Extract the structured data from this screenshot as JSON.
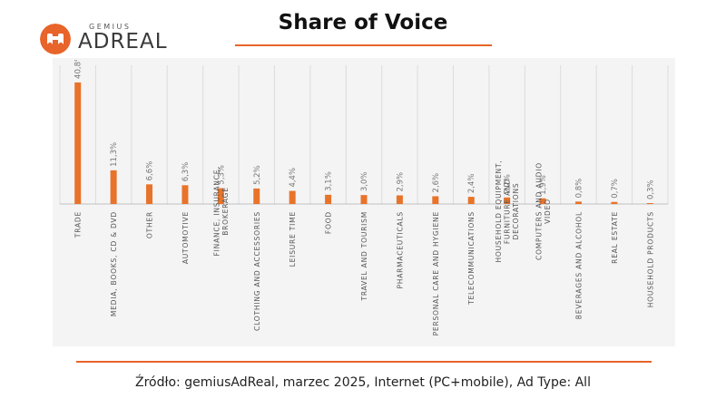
{
  "brand": {
    "small": "GEMIUS",
    "big": "ADREAL",
    "icon": "binoculars-icon",
    "color": "#e8642a"
  },
  "header": {
    "title": "Share of Voice"
  },
  "footer": {
    "source": "Źródło: gemiusAdReal, marzec 2025, Internet (PC+mobile), Ad Type: All"
  },
  "chart_data": {
    "type": "bar",
    "title": "",
    "xlabel": "",
    "ylabel": "",
    "ylim": [
      0,
      42
    ],
    "grid": "vertical",
    "bar_color": "#e8732a",
    "categories": [
      [
        "TRADE"
      ],
      [
        "MEDIA, BOOKS, CD & DVD"
      ],
      [
        "OTHER"
      ],
      [
        "AUTOMOTIVE"
      ],
      [
        "FINANCE, INSURANCE,",
        "BROKERAGE"
      ],
      [
        "CLOTHING AND ACCESSORIES"
      ],
      [
        "LEISURE TIME"
      ],
      [
        "FOOD"
      ],
      [
        "TRAVEL AND TOURISM"
      ],
      [
        "PHARMACEUTICALS"
      ],
      [
        "PERSONAL CARE AND HYGIENE"
      ],
      [
        "TELECOMMUNICATIONS"
      ],
      [
        "HOUSEHOLD EQUIPMENT,",
        "FURNITURE AND",
        "DECORATIONS"
      ],
      [
        "COMPUTERS AND AUDIO",
        "VIDEO"
      ],
      [
        "BEVERAGES AND ALCOHOL"
      ],
      [
        "REAL ESTATE"
      ],
      [
        "HOUSEHOLD PRODUCTS"
      ]
    ],
    "values": [
      40.8,
      11.3,
      6.6,
      6.3,
      5.3,
      5.2,
      4.4,
      3.1,
      3.0,
      2.9,
      2.6,
      2.4,
      2.2,
      1.9,
      0.8,
      0.7,
      0.3
    ],
    "data_labels": [
      "40,8%",
      "11,3%",
      "6,6%",
      "6,3%",
      "5,3%",
      "5,2%",
      "4,4%",
      "3,1%",
      "3,0%",
      "2,9%",
      "2,6%",
      "2,4%",
      "2,2%",
      "1,9%",
      "0,8%",
      "0,7%",
      "0,3%"
    ]
  }
}
